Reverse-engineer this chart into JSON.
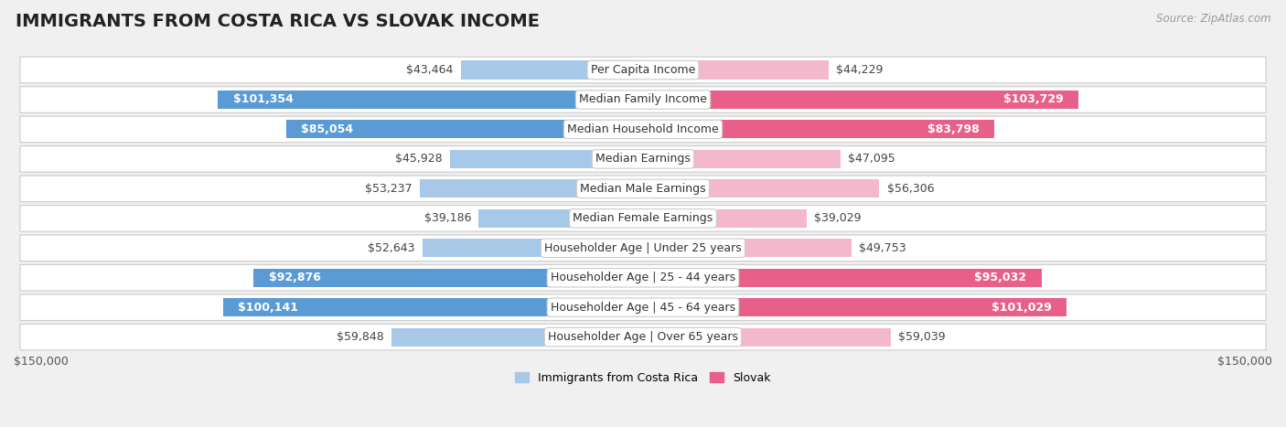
{
  "title": "IMMIGRANTS FROM COSTA RICA VS SLOVAK INCOME",
  "source": "Source: ZipAtlas.com",
  "categories": [
    "Per Capita Income",
    "Median Family Income",
    "Median Household Income",
    "Median Earnings",
    "Median Male Earnings",
    "Median Female Earnings",
    "Householder Age | Under 25 years",
    "Householder Age | 25 - 44 years",
    "Householder Age | 45 - 64 years",
    "Householder Age | Over 65 years"
  ],
  "costa_rica_values": [
    43464,
    101354,
    85054,
    45928,
    53237,
    39186,
    52643,
    92876,
    100141,
    59848
  ],
  "slovak_values": [
    44229,
    103729,
    83798,
    47095,
    56306,
    39029,
    49753,
    95032,
    101029,
    59039
  ],
  "costa_rica_labels": [
    "$43,464",
    "$101,354",
    "$85,054",
    "$45,928",
    "$53,237",
    "$39,186",
    "$52,643",
    "$92,876",
    "$100,141",
    "$59,848"
  ],
  "slovak_labels": [
    "$44,229",
    "$103,729",
    "$83,798",
    "$47,095",
    "$56,306",
    "$39,029",
    "$49,753",
    "$95,032",
    "$101,029",
    "$59,039"
  ],
  "costa_rica_color_light": "#a8c8e8",
  "costa_rica_color_dark": "#5b9bd5",
  "slovak_color_light": "#f4b8cc",
  "slovak_color_dark": "#e8608a",
  "inside_threshold": 70000,
  "bar_height": 0.62,
  "max_value": 150000,
  "bg_color": "#f0f0f0",
  "row_bg": "#ffffff",
  "xlabel_left": "$150,000",
  "xlabel_right": "$150,000",
  "legend_label_left": "Immigrants from Costa Rica",
  "legend_label_right": "Slovak",
  "title_fontsize": 14,
  "label_fontsize": 9,
  "category_fontsize": 9,
  "source_fontsize": 8.5
}
